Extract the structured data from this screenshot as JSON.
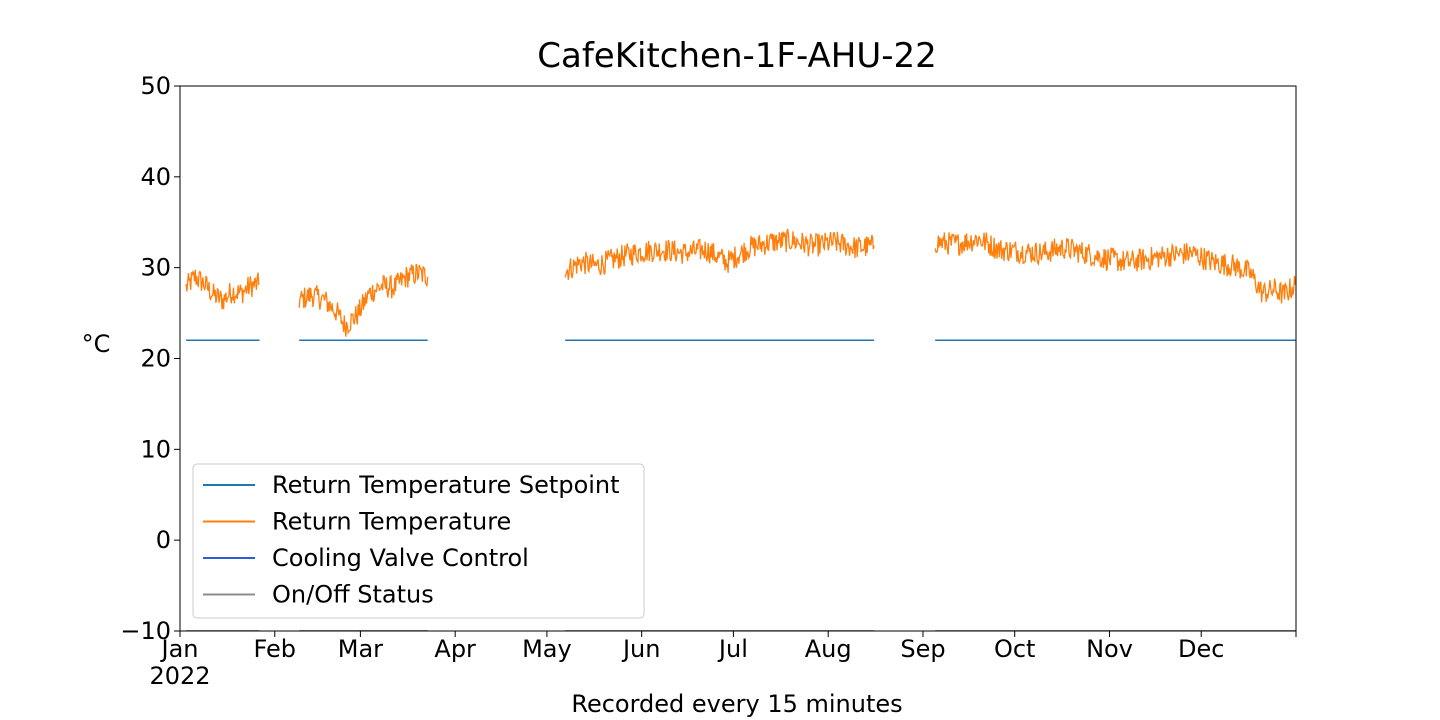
{
  "chart_data": {
    "type": "line",
    "title": "CafeKitchen-1F-AHU-22",
    "xlabel": "Recorded every 15 minutes",
    "ylabel": "°C",
    "ylim": [
      -10,
      50
    ],
    "yticks": [
      -10,
      0,
      10,
      20,
      30,
      40,
      50
    ],
    "ytick_labels": [
      "−10",
      "0",
      "10",
      "20",
      "30",
      "40",
      "50"
    ],
    "xlim": [
      "2022-01-01",
      "2023-01-01"
    ],
    "xticks": [
      {
        "date": "2022-01-01",
        "label": "Jan",
        "sublabel": "2022"
      },
      {
        "date": "2022-02-01",
        "label": "Feb",
        "sublabel": ""
      },
      {
        "date": "2022-03-01",
        "label": "Mar",
        "sublabel": ""
      },
      {
        "date": "2022-04-01",
        "label": "Apr",
        "sublabel": ""
      },
      {
        "date": "2022-05-01",
        "label": "May",
        "sublabel": ""
      },
      {
        "date": "2022-06-01",
        "label": "Jun",
        "sublabel": ""
      },
      {
        "date": "2022-07-01",
        "label": "Jul",
        "sublabel": ""
      },
      {
        "date": "2022-08-01",
        "label": "Aug",
        "sublabel": ""
      },
      {
        "date": "2022-09-01",
        "label": "Sep",
        "sublabel": ""
      },
      {
        "date": "2022-10-01",
        "label": "Oct",
        "sublabel": ""
      },
      {
        "date": "2022-11-01",
        "label": "Nov",
        "sublabel": ""
      },
      {
        "date": "2022-12-01",
        "label": "Dec",
        "sublabel": ""
      }
    ],
    "legend_position": "lower-left",
    "series": [
      {
        "name": "Return Temperature Setpoint",
        "color": "#1f77b4",
        "segments": [
          [
            [
              "2022-01-03",
              22
            ],
            [
              "2022-01-27",
              22
            ]
          ],
          [
            [
              "2022-02-09",
              22
            ],
            [
              "2022-03-23",
              22
            ]
          ],
          [
            [
              "2022-05-07",
              22
            ],
            [
              "2022-08-16",
              22
            ]
          ],
          [
            [
              "2022-09-05",
              22
            ],
            [
              "2023-01-01",
              22
            ]
          ]
        ]
      },
      {
        "name": "Return Temperature",
        "color": "#ff7f0e",
        "segments": [
          [
            [
              "2022-01-03",
              27.8
            ],
            [
              "2022-01-06",
              29.0
            ],
            [
              "2022-01-09",
              28.2
            ],
            [
              "2022-01-12",
              27.0
            ],
            [
              "2022-01-15",
              26.4
            ],
            [
              "2022-01-18",
              27.4
            ],
            [
              "2022-01-21",
              27.2
            ],
            [
              "2022-01-24",
              28.0
            ],
            [
              "2022-01-27",
              28.2
            ]
          ],
          [
            [
              "2022-02-09",
              26.4
            ],
            [
              "2022-02-13",
              27.0
            ],
            [
              "2022-02-17",
              26.5
            ],
            [
              "2022-02-21",
              25.2
            ],
            [
              "2022-02-24",
              23.6
            ],
            [
              "2022-02-28",
              24.8
            ],
            [
              "2022-03-04",
              27.2
            ],
            [
              "2022-03-08",
              28.0
            ],
            [
              "2022-03-12",
              27.8
            ],
            [
              "2022-03-16",
              29.0
            ],
            [
              "2022-03-20",
              29.4
            ],
            [
              "2022-03-23",
              29.0
            ]
          ],
          [
            [
              "2022-05-07",
              29.6
            ],
            [
              "2022-05-12",
              30.6
            ],
            [
              "2022-05-17",
              30.2
            ],
            [
              "2022-05-22",
              30.8
            ],
            [
              "2022-05-27",
              31.4
            ],
            [
              "2022-06-01",
              31.8
            ],
            [
              "2022-06-08",
              32.0
            ],
            [
              "2022-06-15",
              31.6
            ],
            [
              "2022-06-22",
              32.0
            ],
            [
              "2022-06-29",
              30.6
            ],
            [
              "2022-07-06",
              32.2
            ],
            [
              "2022-07-13",
              32.8
            ],
            [
              "2022-07-20",
              33.0
            ],
            [
              "2022-07-27",
              32.4
            ],
            [
              "2022-08-03",
              32.8
            ],
            [
              "2022-08-10",
              32.2
            ],
            [
              "2022-08-16",
              32.4
            ]
          ],
          [
            [
              "2022-09-05",
              32.8
            ],
            [
              "2022-09-12",
              32.6
            ],
            [
              "2022-09-19",
              33.2
            ],
            [
              "2022-09-26",
              32.0
            ],
            [
              "2022-10-03",
              31.8
            ],
            [
              "2022-10-10",
              31.6
            ],
            [
              "2022-10-17",
              32.2
            ],
            [
              "2022-10-24",
              31.6
            ],
            [
              "2022-10-31",
              31.0
            ],
            [
              "2022-11-07",
              30.6
            ],
            [
              "2022-11-14",
              31.0
            ],
            [
              "2022-11-21",
              31.4
            ],
            [
              "2022-11-28",
              31.6
            ],
            [
              "2022-12-05",
              30.6
            ],
            [
              "2022-12-12",
              30.2
            ],
            [
              "2022-12-17",
              29.4
            ],
            [
              "2022-12-21",
              27.2
            ],
            [
              "2022-12-25",
              27.6
            ],
            [
              "2022-12-28",
              27.0
            ],
            [
              "2023-01-01",
              28.2
            ]
          ]
        ]
      },
      {
        "name": "Cooling Valve Control",
        "color": "#2a5fd6",
        "segments": [
          [
            [
              "2022-01-03",
              -10
            ],
            [
              "2022-01-27",
              -10
            ]
          ],
          [
            [
              "2022-02-09",
              -10
            ],
            [
              "2022-03-23",
              -10
            ]
          ],
          [
            [
              "2022-05-07",
              -10
            ],
            [
              "2022-08-16",
              -10
            ]
          ],
          [
            [
              "2022-09-05",
              -10
            ],
            [
              "2023-01-01",
              -10
            ]
          ]
        ]
      },
      {
        "name": "On/Off Status",
        "color": "#8c8c8c",
        "segments": [
          [
            [
              "2022-01-03",
              -10
            ],
            [
              "2022-01-27",
              -10
            ]
          ],
          [
            [
              "2022-02-09",
              -10
            ],
            [
              "2022-03-23",
              -10
            ]
          ],
          [
            [
              "2022-05-07",
              -10
            ],
            [
              "2022-08-16",
              -10
            ]
          ],
          [
            [
              "2022-09-05",
              -10
            ],
            [
              "2023-01-01",
              -10
            ]
          ]
        ]
      }
    ]
  }
}
